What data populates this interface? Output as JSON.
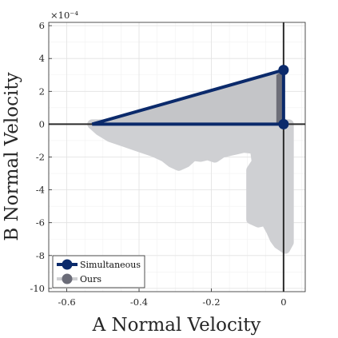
{
  "chart_data": {
    "type": "line",
    "title": "",
    "xlabel": "A Normal Velocity",
    "ylabel": "B Normal Velocity",
    "y_exponent_label": "×10⁻⁴",
    "xlim": [
      -0.65,
      0.06
    ],
    "ylim": [
      -10.2,
      6.2
    ],
    "x_ticks": [
      -0.6,
      -0.4,
      -0.2,
      0
    ],
    "x_tick_labels": [
      "-0.6",
      "-0.4",
      "-0.2",
      "0"
    ],
    "y_ticks": [
      -10,
      -8,
      -6,
      -4,
      -2,
      0,
      2,
      4,
      6
    ],
    "y_tick_labels": [
      "-10",
      "-8",
      "-6",
      "-4",
      "-2",
      "0",
      "2",
      "4",
      "6"
    ],
    "grid": true,
    "legend_position": "bottom-left",
    "colors": {
      "simultaneous": "#0b2a6b",
      "ours": "#6b6c78",
      "cloud": "#cfd0d3",
      "hull_fill": "#c4c5c8",
      "hull_dark": "#6d6e78",
      "axes_lines": "#2b2b2b"
    },
    "series": [
      {
        "name": "Simultaneous",
        "points": [
          [
            -0.53,
            0.0
          ],
          [
            0.0,
            3.3
          ],
          [
            0.0,
            0.0
          ],
          [
            -0.53,
            0.0
          ]
        ],
        "markers": [
          [
            0.0,
            3.3
          ],
          [
            0.0,
            0.0
          ]
        ]
      },
      {
        "name": "Ours",
        "region_outline": [
          [
            -0.53,
            0.0
          ],
          [
            -0.51,
            -0.4
          ],
          [
            -0.48,
            -0.8
          ],
          [
            -0.44,
            -1.1
          ],
          [
            -0.4,
            -1.4
          ],
          [
            -0.36,
            -1.7
          ],
          [
            -0.33,
            -2.0
          ],
          [
            -0.31,
            -2.35
          ],
          [
            -0.29,
            -2.55
          ],
          [
            -0.27,
            -2.35
          ],
          [
            -0.25,
            -1.95
          ],
          [
            -0.23,
            -2.0
          ],
          [
            -0.21,
            -1.9
          ],
          [
            -0.19,
            -2.05
          ],
          [
            -0.17,
            -1.75
          ],
          [
            -0.15,
            -1.65
          ],
          [
            -0.13,
            -1.55
          ],
          [
            -0.11,
            -1.45
          ],
          [
            -0.09,
            -1.5
          ],
          [
            -0.08,
            -1.5
          ],
          [
            -0.075,
            -2.3
          ],
          [
            -0.09,
            -2.8
          ],
          [
            -0.09,
            -5.8
          ],
          [
            -0.07,
            -6.0
          ],
          [
            -0.05,
            -5.9
          ],
          [
            -0.035,
            -6.5
          ],
          [
            -0.025,
            -7.0
          ],
          [
            -0.015,
            -7.3
          ],
          [
            0.005,
            -7.6
          ],
          [
            0.015,
            -7.2
          ],
          [
            0.015,
            0.0
          ]
        ]
      }
    ],
    "legend": [
      {
        "label": "Simultaneous",
        "key": "simultaneous"
      },
      {
        "label": "Ours",
        "key": "ours"
      }
    ]
  }
}
